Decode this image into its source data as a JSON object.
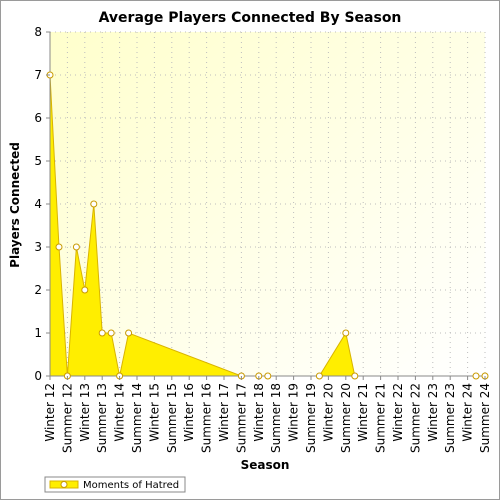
{
  "chart_data": {
    "type": "area",
    "title": "Average Players Connected By Season",
    "xlabel": "Season",
    "ylabel": "Players Connected",
    "ylim": [
      0,
      8
    ],
    "yticks": [
      0,
      1,
      2,
      3,
      4,
      5,
      6,
      7,
      8
    ],
    "grid": true,
    "legend": "bottom-left",
    "categories": [
      "Winter 12",
      "Summer 12",
      "Winter 13",
      "Summer 13",
      "Winter 14",
      "Summer 14",
      "Winter 15",
      "Summer 15",
      "Winter 16",
      "Summer 16",
      "Winter 17",
      "Summer 17",
      "Winter 18",
      "Summer 18",
      "Winter 19",
      "Summer 19",
      "Winter 20",
      "Summer 20",
      "Winter 21",
      "Summer 21",
      "Winter 22",
      "Summer 22",
      "Winter 23",
      "Summer 23",
      "Winter 24",
      "Summer 24"
    ],
    "series": [
      {
        "name": "Moments of Hatred",
        "color": "#ffee00",
        "points": [
          {
            "x": "Winter 12",
            "y": 7
          },
          {
            "x": "Winter 12",
            "y": 3
          },
          {
            "x": "Summer 12",
            "y": 0
          },
          {
            "x": "Summer 12",
            "y": 3
          },
          {
            "x": "Winter 13",
            "y": 2
          },
          {
            "x": "Winter 13",
            "y": 4
          },
          {
            "x": "Summer 13",
            "y": 1
          },
          {
            "x": "Summer 13",
            "y": 1
          },
          {
            "x": "Winter 14",
            "y": 0
          },
          {
            "x": "Winter 14",
            "y": 1
          },
          {
            "x": "Summer 17",
            "y": 0
          },
          {
            "x": "Winter 18",
            "y": 0
          },
          {
            "x": "Winter 18",
            "y": 0
          },
          {
            "x": "Winter 20",
            "y": 0
          },
          {
            "x": "Summer 20",
            "y": 1
          },
          {
            "x": "Summer 20",
            "y": 0
          },
          {
            "x": "Summer 24",
            "y": 0
          },
          {
            "x": "Summer 24",
            "y": 0
          }
        ]
      }
    ],
    "colors": {
      "plot_bg_light": "#ffffff",
      "plot_bg_yellow": "#ffffcc",
      "grid": "#bdbdbd",
      "area_fill": "#ffee00",
      "area_line": "#d9b400",
      "marker_fill": "#ffffff",
      "marker_stroke": "#c99a00"
    }
  }
}
